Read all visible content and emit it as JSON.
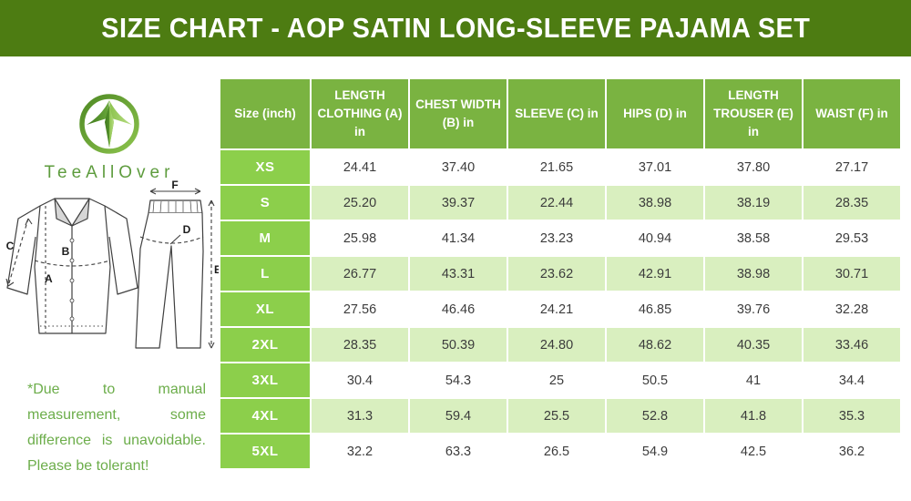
{
  "title": "SIZE CHART - AOP SATIN LONG-SLEEVE PAJAMA SET",
  "logo": {
    "brand": "TeeAllOver"
  },
  "note": "*Due to manual measurement, some difference is unavoidable. Please be tolerant!",
  "diagram_labels": {
    "length_clothing": "A",
    "chest_width": "B",
    "sleeve": "C",
    "hips": "D",
    "length_trouser": "E",
    "waist": "F"
  },
  "colors": {
    "title_bar": "#4d7c12",
    "table_header": "#7ab341",
    "size_cell": "#8ccf4b",
    "row_alternate": "#d9efbf",
    "note_text": "#6cad4a",
    "brand_text": "#5e9c3e"
  },
  "table": {
    "headers": [
      "Size (inch)",
      "LENGTH CLOTHING (A) in",
      "CHEST WIDTH (B) in",
      "SLEEVE (C) in",
      "HIPS (D) in",
      "LENGTH TROUSER (E) in",
      "WAIST (F) in"
    ],
    "rows": [
      {
        "size": "XS",
        "values": [
          "24.41",
          "37.40",
          "21.65",
          "37.01",
          "37.80",
          "27.17"
        ]
      },
      {
        "size": "S",
        "values": [
          "25.20",
          "39.37",
          "22.44",
          "38.98",
          "38.19",
          "28.35"
        ]
      },
      {
        "size": "M",
        "values": [
          "25.98",
          "41.34",
          "23.23",
          "40.94",
          "38.58",
          "29.53"
        ]
      },
      {
        "size": "L",
        "values": [
          "26.77",
          "43.31",
          "23.62",
          "42.91",
          "38.98",
          "30.71"
        ]
      },
      {
        "size": "XL",
        "values": [
          "27.56",
          "46.46",
          "24.21",
          "46.85",
          "39.76",
          "32.28"
        ]
      },
      {
        "size": "2XL",
        "values": [
          "28.35",
          "50.39",
          "24.80",
          "48.62",
          "40.35",
          "33.46"
        ]
      },
      {
        "size": "3XL",
        "values": [
          "30.4",
          "54.3",
          "25",
          "50.5",
          "41",
          "34.4"
        ]
      },
      {
        "size": "4XL",
        "values": [
          "31.3",
          "59.4",
          "25.5",
          "52.8",
          "41.8",
          "35.3"
        ]
      },
      {
        "size": "5XL",
        "values": [
          "32.2",
          "63.3",
          "26.5",
          "54.9",
          "42.5",
          "36.2"
        ]
      }
    ]
  },
  "chart_data": {
    "type": "table",
    "title": "SIZE CHART - AOP SATIN LONG-SLEEVE PAJAMA SET",
    "columns": [
      "Size (inch)",
      "LENGTH CLOTHING (A) in",
      "CHEST WIDTH (B) in",
      "SLEEVE (C) in",
      "HIPS (D) in",
      "LENGTH TROUSER (E) in",
      "WAIST (F) in"
    ],
    "rows": [
      [
        "XS",
        24.41,
        37.4,
        21.65,
        37.01,
        37.8,
        27.17
      ],
      [
        "S",
        25.2,
        39.37,
        22.44,
        38.98,
        38.19,
        28.35
      ],
      [
        "M",
        25.98,
        41.34,
        23.23,
        40.94,
        38.58,
        29.53
      ],
      [
        "L",
        26.77,
        43.31,
        23.62,
        42.91,
        38.98,
        30.71
      ],
      [
        "XL",
        27.56,
        46.46,
        24.21,
        46.85,
        39.76,
        32.28
      ],
      [
        "2XL",
        28.35,
        50.39,
        24.8,
        48.62,
        40.35,
        33.46
      ],
      [
        "3XL",
        30.4,
        54.3,
        25,
        50.5,
        41,
        34.4
      ],
      [
        "4XL",
        31.3,
        59.4,
        25.5,
        52.8,
        41.8,
        35.3
      ],
      [
        "5XL",
        32.2,
        63.3,
        26.5,
        54.9,
        42.5,
        36.2
      ]
    ]
  }
}
